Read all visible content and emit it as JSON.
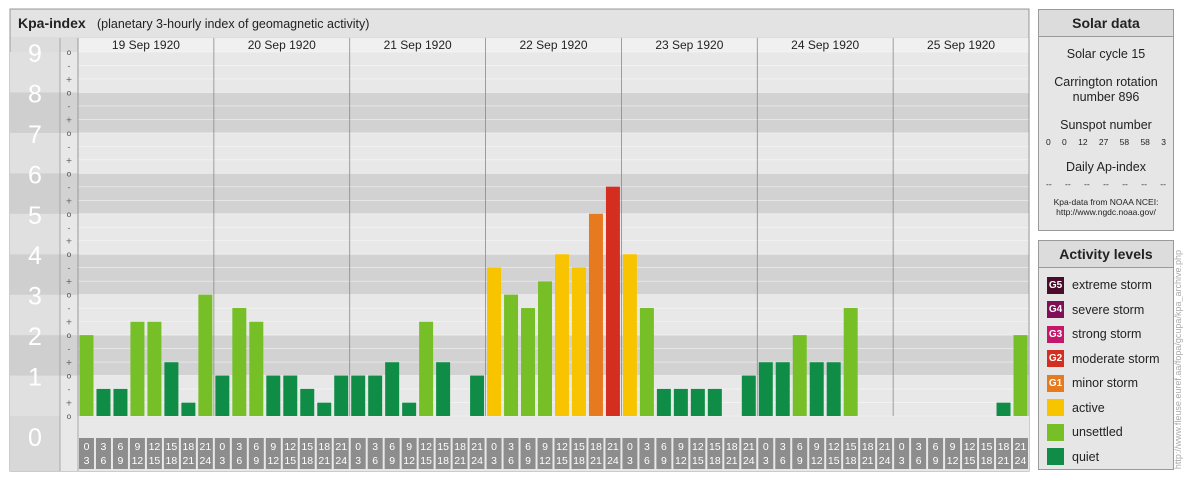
{
  "header": {
    "title": "Kpa-index",
    "subtitle": "(planetary 3-hourly index of geomagnetic activity)"
  },
  "chart_data": {
    "type": "bar",
    "title": "Kpa-index",
    "subtitle": "(planetary 3-hourly index of geomagnetic activity)",
    "ylim": [
      0,
      9
    ],
    "y_ticks": [
      "0",
      "1",
      "2",
      "3",
      "4",
      "5",
      "6",
      "7",
      "8",
      "9"
    ],
    "sub_ticks": [
      "-",
      "o",
      "+"
    ],
    "days": [
      "19 Sep 1920",
      "20 Sep 1920",
      "21 Sep 1920",
      "22 Sep 1920",
      "23 Sep 1920",
      "24 Sep 1920",
      "25 Sep 1920"
    ],
    "interval_start": [
      "0",
      "3",
      "6",
      "9",
      "12",
      "15",
      "18",
      "21"
    ],
    "interval_end": [
      "3",
      "6",
      "9",
      "12",
      "15",
      "18",
      "21",
      "24"
    ],
    "values": [
      [
        2.0,
        0.67,
        0.67,
        2.33,
        2.33,
        1.33,
        0.33,
        3.0
      ],
      [
        1.0,
        2.67,
        2.33,
        1.0,
        1.0,
        0.67,
        0.33,
        1.0
      ],
      [
        1.0,
        1.0,
        1.33,
        0.33,
        2.33,
        1.33,
        0.0,
        1.0
      ],
      [
        3.67,
        3.0,
        2.67,
        3.33,
        4.0,
        3.67,
        5.0,
        5.67
      ],
      [
        4.0,
        2.67,
        0.67,
        0.67,
        0.67,
        0.67,
        0.0,
        1.0
      ],
      [
        1.33,
        1.33,
        2.0,
        1.33,
        1.33,
        2.67,
        0.0,
        0.0
      ],
      [
        0.0,
        0.0,
        0.0,
        0.0,
        0.0,
        0.0,
        0.33,
        2.0
      ]
    ],
    "colors": {
      "quiet": "#0f8c45",
      "unsettled": "#76bf27",
      "active": "#f8c400",
      "minor": "#e77a1e",
      "moderate": "#d42e20",
      "strong": "#c4176b",
      "severe": "#7f0f56",
      "extreme": "#4c0c2b"
    },
    "grid": true
  },
  "solar": {
    "title": "Solar data",
    "cycle": "Solar cycle 15",
    "carrington_line1": "Carrington rotation",
    "carrington_line2": "number 896",
    "sunspot_title": "Sunspot number",
    "sunspot_values": [
      "0",
      "0",
      "12",
      "27",
      "58",
      "58",
      "3"
    ],
    "ap_title": "Daily Ap-index",
    "ap_values": [
      "--",
      "--",
      "--",
      "--",
      "--",
      "--",
      "--"
    ],
    "note_line1": "Kpa-data from NOAA NCEI:",
    "note_line2": "http://www.ngdc.noaa.gov/"
  },
  "levels": {
    "title": "Activity levels",
    "items": [
      {
        "code": "G5",
        "label": "extreme storm",
        "color": "#4c0c2b"
      },
      {
        "code": "G4",
        "label": "severe storm",
        "color": "#7f0f56"
      },
      {
        "code": "G3",
        "label": "strong storm",
        "color": "#c4176b"
      },
      {
        "code": "G2",
        "label": "moderate storm",
        "color": "#d42e20"
      },
      {
        "code": "G1",
        "label": "minor storm",
        "color": "#e77a1e"
      },
      {
        "code": "",
        "label": "active",
        "color": "#f8c400"
      },
      {
        "code": "",
        "label": "unsettled",
        "color": "#76bf27"
      },
      {
        "code": "",
        "label": "quiet",
        "color": "#0f8c45"
      }
    ]
  },
  "credit": "http://www.fleuse.euref.aa/fopa/gcupa/kpa_archive.php"
}
